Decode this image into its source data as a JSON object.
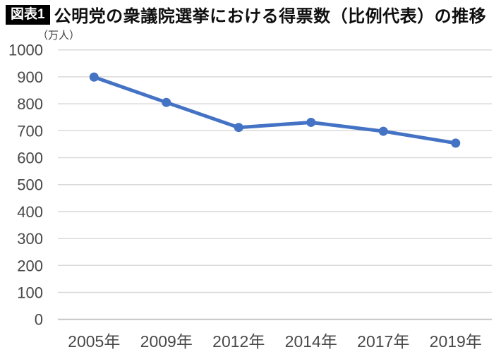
{
  "header": {
    "badge": "図表1",
    "title": "公明党の衆議院選挙における得票数（比例代表）の推移"
  },
  "chart_data": {
    "type": "line",
    "title": "公明党の衆議院選挙における得票数（比例代表）の推移",
    "unit_label": "（万人）",
    "categories": [
      "2005年",
      "2009年",
      "2012年",
      "2014年",
      "2017年",
      "2019年"
    ],
    "series": [
      {
        "name": "得票数（比例代表）",
        "values": [
          899,
          805,
          712,
          731,
          698,
          654
        ]
      }
    ],
    "ylim": [
      0,
      1000
    ],
    "ytick_step": 100,
    "grid": true,
    "legend": false,
    "line_color": "#4472c4",
    "marker_color": "#4472c4",
    "gridline_color": "#d9d9d9",
    "axis_line_color": "#c6c6c6",
    "tick_label_color": "#484848"
  }
}
